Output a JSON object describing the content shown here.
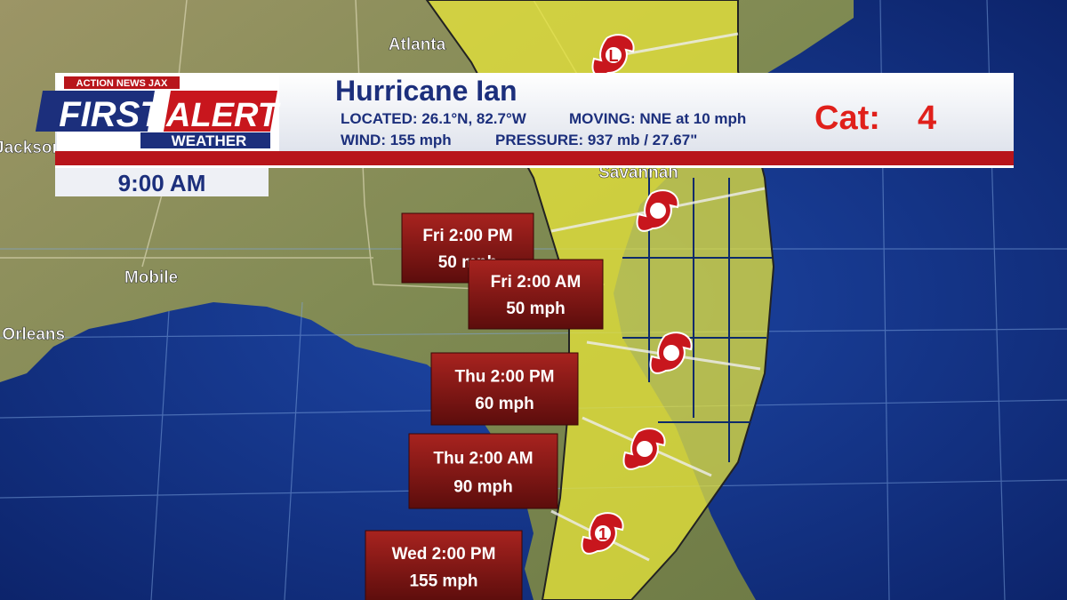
{
  "header": {
    "station": "ACTION NEWS JAX",
    "brand_first": "FIRST",
    "brand_alert": "ALERT",
    "brand_weather": "WEATHER",
    "storm_name": "Hurricane Ian",
    "located": "LOCATED: 26.1°N, 82.7°W",
    "moving": "MOVING: NNE at 10 mph",
    "wind": "WIND: 155 mph",
    "pressure": "PRESSURE:  937 mb / 27.67\"",
    "category_label": "Cat:",
    "category": "4"
  },
  "time": "9:00 AM",
  "cities": [
    "Atlanta",
    "Savannah",
    "Mobile",
    "Jackson",
    "New Orleans"
  ],
  "forecast_points": [
    {
      "time": "Fri 2:00 PM",
      "wind": "50 mph"
    },
    {
      "time": "Fri 2:00 AM",
      "wind": "50 mph"
    },
    {
      "time": "Thu 2:00 PM",
      "wind": "60 mph"
    },
    {
      "time": "Thu 2:00 AM",
      "wind": "90 mph"
    },
    {
      "time": "Wed 2:00 PM",
      "wind": "155 mph"
    }
  ],
  "storm_icons": {
    "top": "L",
    "bottom": "1"
  }
}
